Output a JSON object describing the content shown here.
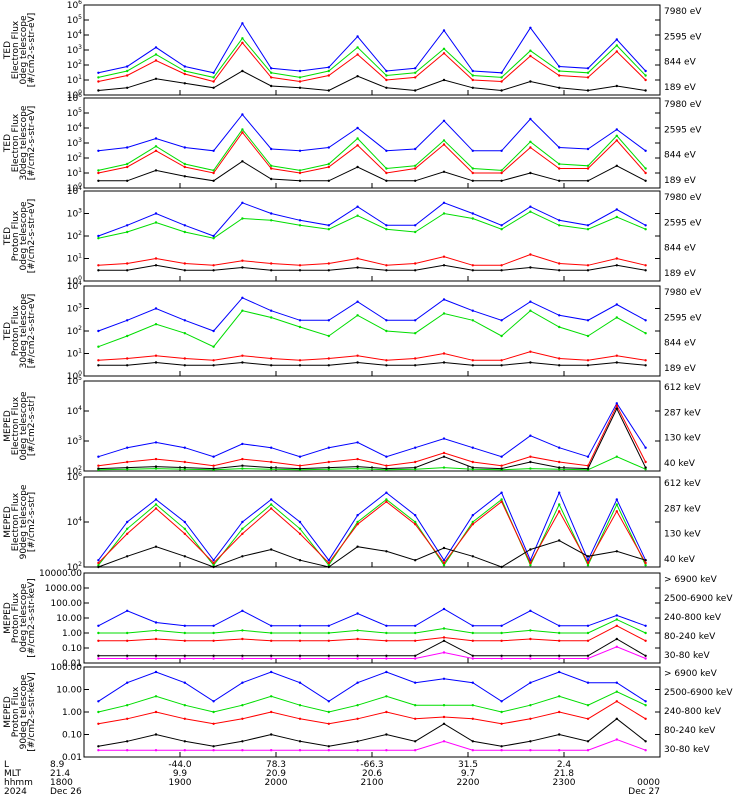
{
  "figure": {
    "x_axis": {
      "row_labels": [
        "L",
        "MLT",
        "hhmm",
        "2024"
      ],
      "ticks": [
        {
          "L": "8.9",
          "MLT": "21.4",
          "hhmm": "1800",
          "date": "Dec 26"
        },
        {
          "L": "-44.0",
          "MLT": "9.9",
          "hhmm": "1900",
          "date": ""
        },
        {
          "L": "78.3",
          "MLT": "20.9",
          "hhmm": "2000",
          "date": ""
        },
        {
          "L": "-66.3",
          "MLT": "20.6",
          "hhmm": "2100",
          "date": ""
        },
        {
          "L": "31.5",
          "MLT": "9.7",
          "hhmm": "2200",
          "date": ""
        },
        {
          "L": "2.4",
          "MLT": "21.8",
          "hhmm": "2300",
          "date": ""
        },
        {
          "L": "",
          "MLT": "",
          "hhmm": "0000",
          "date": "Dec 27"
        }
      ]
    },
    "colors": {
      "blue": "#0000ff",
      "green": "#00dd00",
      "red": "#ff0000",
      "black": "#000000",
      "magenta": "#ff00ff"
    }
  },
  "chart_data": [
    {
      "type": "line",
      "panel": 1,
      "ylabel": [
        "TED",
        "Electron Flux",
        "0deg telescope",
        "[#/cm2-s-str-eV]"
      ],
      "y_scale": "log",
      "y_ticks": [
        "10^0",
        "10^1",
        "10^2",
        "10^3",
        "10^4",
        "10^5",
        "10^6"
      ],
      "ylim": [
        1,
        1000000
      ],
      "series": [
        {
          "name": "7980 eV",
          "color": "#000000",
          "values": [
            2,
            3,
            12,
            6,
            3,
            40,
            4,
            3,
            2,
            18,
            3,
            2,
            10,
            3,
            2,
            8,
            3,
            2,
            4,
            2
          ]
        },
        {
          "name": "2595 eV",
          "color": "#ff0000",
          "values": [
            8,
            20,
            200,
            25,
            8,
            3000,
            15,
            8,
            20,
            500,
            10,
            15,
            600,
            10,
            8,
            400,
            20,
            15,
            800,
            10
          ]
        },
        {
          "name": "844 eV",
          "color": "#00dd00",
          "values": [
            15,
            40,
            500,
            40,
            15,
            6000,
            30,
            15,
            40,
            1500,
            20,
            30,
            1200,
            20,
            15,
            900,
            40,
            30,
            2000,
            20
          ]
        },
        {
          "name": "189 eV",
          "color": "#0000ff",
          "values": [
            30,
            80,
            1500,
            80,
            30,
            60000,
            60,
            40,
            70,
            8000,
            40,
            60,
            20000,
            40,
            30,
            30000,
            80,
            60,
            5000,
            40
          ]
        }
      ]
    },
    {
      "type": "line",
      "panel": 2,
      "ylabel": [
        "TED",
        "Electron Flux",
        "30deg telescope",
        "[#/cm2-s-str-eV]"
      ],
      "y_scale": "log",
      "y_ticks": [
        "10^0",
        "10^1",
        "10^2",
        "10^3",
        "10^4",
        "10^5",
        "10^6"
      ],
      "ylim": [
        1,
        1000000
      ],
      "series": [
        {
          "name": "7980 eV",
          "color": "#000000",
          "values": [
            3,
            3,
            15,
            6,
            3,
            60,
            4,
            3,
            3,
            25,
            3,
            3,
            12,
            3,
            3,
            10,
            3,
            3,
            30,
            3
          ]
        },
        {
          "name": "2595 eV",
          "color": "#ff0000",
          "values": [
            10,
            25,
            300,
            25,
            10,
            5000,
            20,
            10,
            25,
            700,
            10,
            20,
            800,
            10,
            10,
            500,
            20,
            20,
            1500,
            10
          ]
        },
        {
          "name": "844 eV",
          "color": "#00dd00",
          "values": [
            15,
            40,
            600,
            40,
            15,
            8000,
            30,
            15,
            40,
            2000,
            20,
            30,
            1500,
            20,
            15,
            1200,
            40,
            30,
            3000,
            20
          ]
        },
        {
          "name": "189 eV",
          "color": "#0000ff",
          "values": [
            300,
            500,
            2000,
            500,
            300,
            80000,
            400,
            300,
            500,
            10000,
            300,
            400,
            30000,
            300,
            300,
            40000,
            500,
            400,
            8000,
            300
          ]
        }
      ]
    },
    {
      "type": "line",
      "panel": 3,
      "ylabel": [
        "TED",
        "Proton Flux",
        "0deg telescope",
        "[#/cm2-s-str-eV]"
      ],
      "y_scale": "log",
      "y_ticks": [
        "10^0",
        "10^1",
        "10^2",
        "10^3",
        "10^4"
      ],
      "ylim": [
        1,
        10000
      ],
      "series": [
        {
          "name": "7980 eV",
          "color": "#000000",
          "values": [
            3,
            3,
            5,
            3,
            3,
            4,
            3,
            3,
            3,
            4,
            3,
            3,
            5,
            3,
            3,
            4,
            3,
            3,
            5,
            3
          ]
        },
        {
          "name": "2595 eV",
          "color": "#ff0000",
          "values": [
            5,
            6,
            10,
            6,
            5,
            8,
            6,
            5,
            6,
            10,
            5,
            6,
            12,
            5,
            5,
            15,
            6,
            5,
            10,
            5
          ]
        },
        {
          "name": "844 eV",
          "color": "#00dd00",
          "values": [
            80,
            150,
            400,
            150,
            80,
            600,
            500,
            300,
            200,
            800,
            200,
            150,
            1000,
            600,
            200,
            1200,
            300,
            200,
            700,
            200
          ]
        },
        {
          "name": "189 eV",
          "color": "#0000ff",
          "values": [
            100,
            300,
            1000,
            300,
            100,
            3000,
            1000,
            500,
            300,
            2000,
            300,
            300,
            3000,
            1000,
            300,
            2000,
            500,
            300,
            1500,
            300
          ]
        }
      ]
    },
    {
      "type": "line",
      "panel": 4,
      "ylabel": [
        "TED",
        "Proton Flux",
        "30deg telescope",
        "[#/cm2-s-str-eV]"
      ],
      "y_scale": "log",
      "y_ticks": [
        "10^0",
        "10^1",
        "10^2",
        "10^3",
        "10^4"
      ],
      "ylim": [
        1,
        10000
      ],
      "series": [
        {
          "name": "7980 eV",
          "color": "#000000",
          "values": [
            3,
            3,
            4,
            3,
            3,
            4,
            3,
            3,
            3,
            4,
            3,
            3,
            4,
            3,
            3,
            4,
            3,
            3,
            4,
            3
          ]
        },
        {
          "name": "2595 eV",
          "color": "#ff0000",
          "values": [
            5,
            6,
            8,
            6,
            5,
            8,
            6,
            5,
            6,
            8,
            5,
            6,
            10,
            5,
            5,
            12,
            6,
            5,
            8,
            5
          ]
        },
        {
          "name": "844 eV",
          "color": "#00dd00",
          "values": [
            20,
            60,
            200,
            80,
            20,
            800,
            400,
            150,
            60,
            500,
            100,
            80,
            600,
            300,
            60,
            800,
            150,
            60,
            400,
            80
          ]
        },
        {
          "name": "189 eV",
          "color": "#0000ff",
          "values": [
            100,
            300,
            1000,
            300,
            100,
            3000,
            800,
            300,
            300,
            2000,
            300,
            300,
            2500,
            800,
            300,
            2000,
            500,
            300,
            1500,
            300
          ]
        }
      ]
    },
    {
      "type": "line",
      "panel": 5,
      "ylabel": [
        "MEPED",
        "Electron Flux",
        "0deg telescope",
        "[#/cm2-s-str]"
      ],
      "y_scale": "log",
      "y_ticks": [
        "10^2",
        "10^3",
        "10^4",
        "10^5"
      ],
      "ylim": [
        100,
        100000
      ],
      "series": [
        {
          "name": "612 keV",
          "color": "#000000",
          "values": [
            120,
            130,
            140,
            130,
            120,
            150,
            130,
            120,
            130,
            140,
            120,
            130,
            300,
            130,
            120,
            200,
            130,
            120,
            12000,
            130
          ]
        },
        {
          "name": "287 keV",
          "color": "#ff0000",
          "values": [
            150,
            200,
            250,
            200,
            150,
            250,
            200,
            150,
            200,
            250,
            150,
            200,
            400,
            200,
            150,
            300,
            200,
            150,
            15000,
            200
          ]
        },
        {
          "name": "130 keV",
          "color": "#00dd00",
          "values": [
            110,
            115,
            120,
            115,
            110,
            120,
            115,
            110,
            115,
            120,
            110,
            115,
            130,
            115,
            110,
            120,
            115,
            110,
            300,
            115
          ]
        },
        {
          "name": "40 keV",
          "color": "#0000ff",
          "values": [
            300,
            600,
            900,
            600,
            300,
            800,
            600,
            300,
            600,
            900,
            300,
            600,
            1200,
            600,
            300,
            1500,
            600,
            300,
            18000,
            600
          ]
        }
      ]
    },
    {
      "type": "line",
      "panel": 6,
      "ylabel": [
        "MEPED",
        "Electron Flux",
        "90deg telescope",
        "[#/cm2-s-str]"
      ],
      "y_scale": "log",
      "y_ticks": [
        "10^2",
        "10^4",
        "10^6"
      ],
      "ylim": [
        100,
        1000000
      ],
      "series": [
        {
          "name": "612 keV",
          "color": "#000000",
          "values": [
            100,
            300,
            800,
            300,
            100,
            300,
            600,
            200,
            100,
            800,
            500,
            200,
            700,
            300,
            100,
            600,
            1500,
            300,
            500,
            200
          ]
        },
        {
          "name": "287 keV",
          "color": "#ff0000",
          "values": [
            150,
            3000,
            40000,
            3000,
            150,
            3000,
            40000,
            3000,
            150,
            8000,
            80000,
            8000,
            150,
            8000,
            80000,
            150,
            30000,
            150,
            30000,
            150
          ]
        },
        {
          "name": "130 keV",
          "color": "#00dd00",
          "values": [
            120,
            5000,
            60000,
            5000,
            120,
            5000,
            60000,
            5000,
            120,
            10000,
            100000,
            10000,
            120,
            10000,
            100000,
            120,
            60000,
            120,
            60000,
            120
          ]
        },
        {
          "name": "40 keV",
          "color": "#0000ff",
          "values": [
            200,
            10000,
            100000,
            10000,
            200,
            10000,
            100000,
            10000,
            200,
            20000,
            200000,
            20000,
            200,
            20000,
            200000,
            200,
            200000,
            200,
            100000,
            200
          ]
        }
      ]
    },
    {
      "type": "line",
      "panel": 7,
      "ylabel": [
        "MEPED",
        "Proton Flux",
        "0deg telescope",
        "[#/cm2-s-str-keV]"
      ],
      "y_scale": "log",
      "y_ticks": [
        "0.01",
        "0.10",
        "1.00",
        "10.00",
        "100.00",
        "1000.00",
        "10000.00"
      ],
      "ylim": [
        0.01,
        10000
      ],
      "series": [
        {
          "name": "> 6900 keV",
          "color": "#ff00ff",
          "values": [
            0.02,
            0.02,
            0.02,
            0.02,
            0.02,
            0.02,
            0.02,
            0.02,
            0.02,
            0.02,
            0.02,
            0.02,
            0.05,
            0.02,
            0.02,
            0.02,
            0.02,
            0.02,
            0.12,
            0.02
          ]
        },
        {
          "name": "2500-6900 keV",
          "color": "#000000",
          "values": [
            0.03,
            0.03,
            0.03,
            0.03,
            0.03,
            0.03,
            0.03,
            0.03,
            0.03,
            0.03,
            0.03,
            0.03,
            0.3,
            0.03,
            0.03,
            0.03,
            0.03,
            0.03,
            0.4,
            0.03
          ]
        },
        {
          "name": "240-800 keV",
          "color": "#ff0000",
          "values": [
            0.3,
            0.3,
            0.4,
            0.3,
            0.3,
            0.4,
            0.3,
            0.3,
            0.3,
            0.4,
            0.3,
            0.3,
            0.5,
            0.3,
            0.3,
            0.4,
            0.3,
            0.3,
            3,
            0.3
          ]
        },
        {
          "name": "80-240 keV",
          "color": "#00dd00",
          "values": [
            1,
            1,
            1.5,
            1,
            1,
            1.5,
            1,
            1,
            1,
            1.5,
            1,
            1,
            2,
            1,
            1,
            1.5,
            1,
            1,
            8,
            1
          ]
        },
        {
          "name": "30-80 keV",
          "color": "#0000ff",
          "values": [
            3,
            30,
            5,
            3,
            3,
            30,
            3,
            3,
            3,
            20,
            3,
            3,
            40,
            3,
            3,
            30,
            3,
            3,
            15,
            3
          ]
        }
      ]
    },
    {
      "type": "line",
      "panel": 8,
      "ylabel": [
        "MEPED",
        "Proton Flux",
        "90deg telescope",
        "[#/cm2-s-str-keV]"
      ],
      "y_scale": "log",
      "y_ticks": [
        "0.01",
        "0.10",
        "1.00",
        "10.00",
        "100.00"
      ],
      "ylim": [
        0.01,
        100
      ],
      "series": [
        {
          "name": "> 6900 keV",
          "color": "#ff00ff",
          "values": [
            0.02,
            0.02,
            0.02,
            0.02,
            0.02,
            0.02,
            0.02,
            0.02,
            0.02,
            0.02,
            0.02,
            0.02,
            0.05,
            0.02,
            0.02,
            0.02,
            0.02,
            0.02,
            0.06,
            0.02
          ]
        },
        {
          "name": "2500-6900 keV",
          "color": "#000000",
          "values": [
            0.03,
            0.05,
            0.1,
            0.05,
            0.03,
            0.05,
            0.1,
            0.05,
            0.03,
            0.05,
            0.1,
            0.05,
            0.3,
            0.05,
            0.03,
            0.05,
            0.1,
            0.05,
            0.5,
            0.05
          ]
        },
        {
          "name": "240-800 keV",
          "color": "#ff0000",
          "values": [
            0.3,
            0.5,
            1,
            0.5,
            0.3,
            0.5,
            1,
            0.5,
            0.3,
            0.5,
            1,
            0.5,
            0.6,
            0.5,
            0.3,
            0.5,
            1,
            0.5,
            3,
            0.5
          ]
        },
        {
          "name": "80-240 keV",
          "color": "#00dd00",
          "values": [
            1,
            2,
            5,
            2,
            1,
            2,
            5,
            2,
            1,
            2,
            5,
            2,
            2,
            2,
            1,
            2,
            5,
            2,
            8,
            2
          ]
        },
        {
          "name": "30-80 keV",
          "color": "#0000ff",
          "values": [
            3,
            20,
            60,
            20,
            3,
            20,
            60,
            20,
            3,
            20,
            60,
            20,
            30,
            20,
            3,
            20,
            60,
            20,
            20,
            3
          ]
        }
      ]
    }
  ]
}
